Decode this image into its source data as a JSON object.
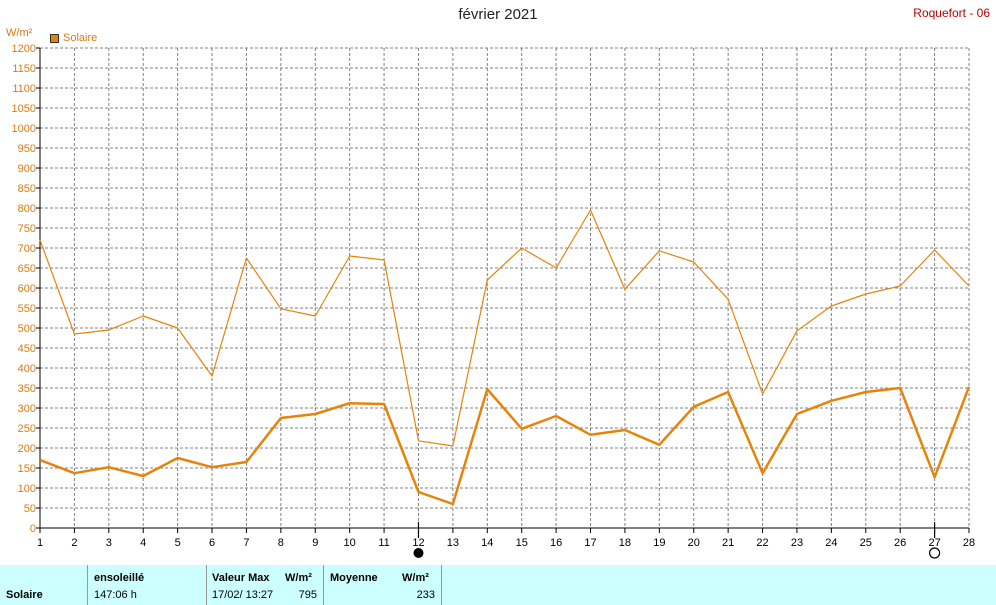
{
  "header": {
    "title": "février 2021",
    "station": "Roquefort - 06",
    "unit": "W/m²",
    "legend_label": "Solaire"
  },
  "colors": {
    "series": "#e8830a",
    "grid": "#808080",
    "footer_bg": "#ccffff",
    "station": "#c00000"
  },
  "moon_phases": [
    {
      "day": 12,
      "phase": "new-moon"
    },
    {
      "day": 27,
      "phase": "full-moon"
    }
  ],
  "chart_data": {
    "type": "line",
    "title": "février 2021",
    "ylabel": "W/m²",
    "xlabel": "",
    "x": [
      1,
      2,
      3,
      4,
      5,
      6,
      7,
      8,
      9,
      10,
      11,
      12,
      13,
      14,
      15,
      16,
      17,
      18,
      19,
      20,
      21,
      22,
      23,
      24,
      25,
      26,
      27,
      28
    ],
    "xlim": [
      1,
      28
    ],
    "ylim": [
      0,
      1200
    ],
    "yticks": [
      0,
      50,
      100,
      150,
      200,
      250,
      300,
      350,
      400,
      450,
      500,
      550,
      600,
      650,
      700,
      750,
      800,
      850,
      900,
      950,
      1000,
      1050,
      1100,
      1150,
      1200
    ],
    "grid": true,
    "legend": "top-left",
    "series": [
      {
        "name": "Solaire",
        "style": "thin",
        "values": [
          720,
          485,
          495,
          530,
          500,
          380,
          675,
          548,
          530,
          680,
          670,
          218,
          205,
          620,
          700,
          650,
          795,
          597,
          693,
          665,
          572,
          335,
          493,
          555,
          585,
          605,
          695,
          605
        ]
      },
      {
        "name": "Solaire",
        "style": "thick",
        "values": [
          170,
          137,
          152,
          130,
          175,
          152,
          165,
          275,
          285,
          312,
          310,
          90,
          60,
          347,
          248,
          280,
          233,
          245,
          208,
          303,
          340,
          137,
          285,
          318,
          340,
          350,
          127,
          353
        ]
      }
    ]
  },
  "footer": {
    "row_label": "Solaire",
    "sunshine_header": "ensoleillé",
    "sunshine_value": "147:06 h",
    "max_header": "Valeur Max",
    "max_unit": "W/m²",
    "max_date": "17/02/  13:27",
    "max_value": "795",
    "avg_header": "Moyenne",
    "avg_unit": "W/m²",
    "avg_value": "233"
  }
}
